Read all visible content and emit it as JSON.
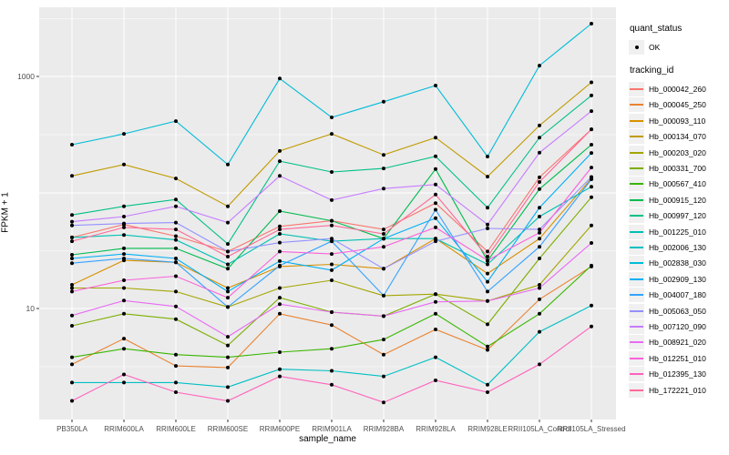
{
  "figure": {
    "background": "#FFFFFF",
    "panel_background": "#EBEBEB",
    "grid_color": "#FFFFFF",
    "point_color": "#000000",
    "tick_color": "#333333",
    "tick_label_color": "#4D4D4D"
  },
  "axes": {
    "y_title": "FPKM + 1",
    "x_title": "sample_name",
    "y_tick_labels": [
      "1000",
      "10"
    ],
    "y_tick_values": [
      1000,
      10
    ]
  },
  "legend": {
    "quant_title": "quant_status",
    "quant_items": [
      {
        "label": "OK",
        "glyph": "point",
        "color": "#000000"
      }
    ],
    "tracking_title": "tracking_id",
    "key_background": "#F0F0F0"
  },
  "chart_data": {
    "type": "line",
    "title": "",
    "xlabel": "sample_name",
    "ylabel": "FPKM + 1",
    "y_scale": "log10",
    "ylim": [
      1,
      3000
    ],
    "grid": true,
    "legend_position": "right",
    "x_categories": [
      "PB350LA",
      "RRIM600LA",
      "RRIM600LE",
      "RRIM600SE",
      "RRIM600PE",
      "RRIM901LA",
      "RRIM928BA",
      "RRIM928LA",
      "RRIM928LE",
      "RRII105LA_Control",
      "RRII105LA_Stressed"
    ],
    "quant_status": "OK",
    "series": [
      {
        "name": "Hb_000042_260",
        "color": "#F8766D",
        "values": [
          41,
          53,
          42,
          31,
          51,
          57,
          48,
          81,
          31,
          135,
          350
        ]
      },
      {
        "name": "Hb_000045_250",
        "color": "#EA8331",
        "values": [
          3.3,
          5.5,
          3.2,
          3.1,
          9,
          7.2,
          4,
          6.6,
          4.4,
          12,
          23
        ]
      },
      {
        "name": "Hb_000093_110",
        "color": "#D89000",
        "values": [
          16,
          26,
          25,
          15,
          23,
          24,
          22,
          40,
          20,
          40,
          132
        ]
      },
      {
        "name": "Hb_000134_070",
        "color": "#C09B00",
        "values": [
          139,
          174,
          132,
          76,
          228,
          320,
          211,
          297,
          137,
          378,
          890
        ]
      },
      {
        "name": "Hb_000203_020",
        "color": "#A3A500",
        "values": [
          15,
          15,
          14,
          10.3,
          15,
          17.5,
          12.9,
          13.3,
          11.6,
          16,
          52
        ]
      },
      {
        "name": "Hb_000331_700",
        "color": "#7CAE00",
        "values": [
          7.1,
          9,
          8.1,
          4.8,
          12.4,
          9.3,
          8.6,
          13.3,
          7.3,
          27,
          91
        ]
      },
      {
        "name": "Hb_000567_410",
        "color": "#39B600",
        "values": [
          3.8,
          4.5,
          4,
          3.8,
          4.2,
          4.5,
          5.4,
          9,
          4.7,
          9,
          23.4
        ]
      },
      {
        "name": "Hb_000915_120",
        "color": "#00BB4E",
        "values": [
          29,
          33,
          33,
          22,
          69,
          57,
          40,
          159,
          25.7,
          107,
          258
        ]
      },
      {
        "name": "Hb_000997_120",
        "color": "#00C087",
        "values": [
          64,
          76,
          87,
          36,
          186,
          150,
          161,
          205,
          74,
          297,
          685
        ]
      },
      {
        "name": "Hb_001225_010",
        "color": "#00C0B2",
        "values": [
          41,
          43,
          39,
          24,
          44,
          38,
          40,
          40,
          24,
          62,
          112
        ]
      },
      {
        "name": "Hb_002006_130",
        "color": "#00BFC4",
        "values": [
          2.3,
          2.3,
          2.3,
          2.1,
          3,
          2.9,
          2.6,
          3.8,
          2.2,
          6.3,
          10.6
        ]
      },
      {
        "name": "Hb_002838_030",
        "color": "#00BCD8",
        "values": [
          258,
          320,
          412,
          174,
          960,
          444,
          605,
          835,
          204,
          1240,
          2850
        ]
      },
      {
        "name": "Hb_002909_130",
        "color": "#00B0F6",
        "values": [
          27,
          29.5,
          27,
          14,
          25.6,
          21.4,
          40,
          60,
          17,
          74,
          219
        ]
      },
      {
        "name": "Hb_004007_180",
        "color": "#35A2FF",
        "values": [
          24.6,
          27,
          25,
          10.3,
          23.4,
          38,
          12.9,
          71,
          14,
          34,
          130
        ]
      },
      {
        "name": "Hb_005063_050",
        "color": "#9590FF",
        "values": [
          52,
          54,
          55,
          31,
          37,
          40,
          22,
          38,
          49,
          48,
          136
        ]
      },
      {
        "name": "Hb_007120_090",
        "color": "#C77CFF",
        "values": [
          56,
          62,
          76,
          55,
          139,
          86,
          108,
          117,
          53,
          220,
          503
        ]
      },
      {
        "name": "Hb_008921_020",
        "color": "#E76BF3",
        "values": [
          8.7,
          11.7,
          10.4,
          5.7,
          10.9,
          9.3,
          8.6,
          11.4,
          11.6,
          15,
          36.7
        ]
      },
      {
        "name": "Hb_012251_010",
        "color": "#FA62DB",
        "values": [
          14,
          17.5,
          19,
          12.4,
          31,
          29.5,
          34,
          50,
          26,
          45,
          164
        ]
      },
      {
        "name": "Hb_012395_130",
        "color": "#FF62BC",
        "values": [
          1.6,
          2.7,
          1.9,
          1.6,
          2.6,
          2.2,
          1.55,
          2.4,
          1.9,
          3.3,
          7
        ]
      },
      {
        "name": "Hb_172221_010",
        "color": "#FF6A98",
        "values": [
          38,
          50,
          48,
          28,
          48,
          52,
          44,
          96,
          28,
          123,
          350
        ]
      }
    ]
  }
}
